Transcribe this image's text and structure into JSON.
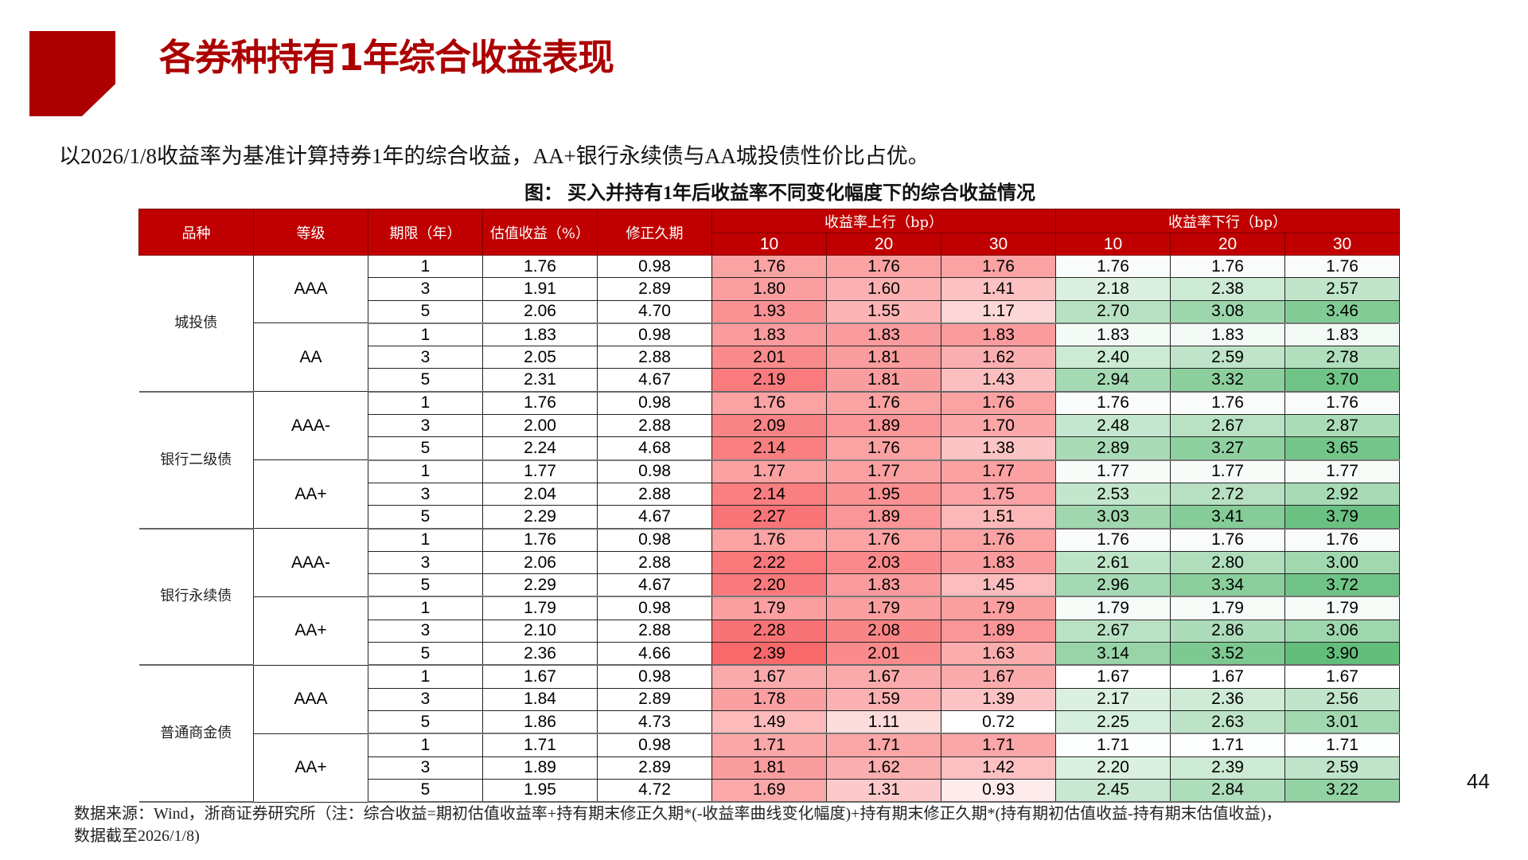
{
  "header": {
    "title": "各券种持有1年综合收益表现"
  },
  "summary": "以2026/1/8收益率为基准计算持券1年的综合收益，AA+银行永续债与AA城投债性价比占优。",
  "figure": {
    "title": "图：  买入并持有1年后收益率不同变化幅度下的综合收益情况"
  },
  "table": {
    "headers": {
      "category": "品种",
      "grade": "等级",
      "term": "期限（年）",
      "yield": "估值收益（%）",
      "duration": "修正久期",
      "up_group": "收益率上行（bp）",
      "down_group": "收益率下行（bp）",
      "bp_steps": [
        "10",
        "20",
        "30"
      ]
    },
    "color_scales": {
      "up": {
        "min": 0.72,
        "max": 2.39,
        "min_color": "#FFFFFF",
        "max_color": "#F8696B"
      },
      "down": {
        "min": 1.67,
        "max": 3.9,
        "min_color": "#FFFFFF",
        "max_color": "#63BE7B"
      }
    },
    "groups": [
      {
        "category": "城投债",
        "grades": [
          {
            "grade": "AAA",
            "rows": [
              {
                "term": "1",
                "yield": "1.76",
                "duration": "0.98",
                "up": [
                  "1.76",
                  "1.76",
                  "1.76"
                ],
                "down": [
                  "1.76",
                  "1.76",
                  "1.76"
                ]
              },
              {
                "term": "3",
                "yield": "1.91",
                "duration": "2.89",
                "up": [
                  "1.80",
                  "1.60",
                  "1.41"
                ],
                "down": [
                  "2.18",
                  "2.38",
                  "2.57"
                ]
              },
              {
                "term": "5",
                "yield": "2.06",
                "duration": "4.70",
                "up": [
                  "1.93",
                  "1.55",
                  "1.17"
                ],
                "down": [
                  "2.70",
                  "3.08",
                  "3.46"
                ]
              }
            ]
          },
          {
            "grade": "AA",
            "rows": [
              {
                "term": "1",
                "yield": "1.83",
                "duration": "0.98",
                "up": [
                  "1.83",
                  "1.83",
                  "1.83"
                ],
                "down": [
                  "1.83",
                  "1.83",
                  "1.83"
                ]
              },
              {
                "term": "3",
                "yield": "2.05",
                "duration": "2.88",
                "up": [
                  "2.01",
                  "1.81",
                  "1.62"
                ],
                "down": [
                  "2.40",
                  "2.59",
                  "2.78"
                ]
              },
              {
                "term": "5",
                "yield": "2.31",
                "duration": "4.67",
                "up": [
                  "2.19",
                  "1.81",
                  "1.43"
                ],
                "down": [
                  "2.94",
                  "3.32",
                  "3.70"
                ]
              }
            ]
          }
        ]
      },
      {
        "category": "银行二级债",
        "grades": [
          {
            "grade": "AAA-",
            "rows": [
              {
                "term": "1",
                "yield": "1.76",
                "duration": "0.98",
                "up": [
                  "1.76",
                  "1.76",
                  "1.76"
                ],
                "down": [
                  "1.76",
                  "1.76",
                  "1.76"
                ]
              },
              {
                "term": "3",
                "yield": "2.00",
                "duration": "2.88",
                "up": [
                  "2.09",
                  "1.89",
                  "1.70"
                ],
                "down": [
                  "2.48",
                  "2.67",
                  "2.87"
                ]
              },
              {
                "term": "5",
                "yield": "2.24",
                "duration": "4.68",
                "up": [
                  "2.14",
                  "1.76",
                  "1.38"
                ],
                "down": [
                  "2.89",
                  "3.27",
                  "3.65"
                ]
              }
            ]
          },
          {
            "grade": "AA+",
            "rows": [
              {
                "term": "1",
                "yield": "1.77",
                "duration": "0.98",
                "up": [
                  "1.77",
                  "1.77",
                  "1.77"
                ],
                "down": [
                  "1.77",
                  "1.77",
                  "1.77"
                ]
              },
              {
                "term": "3",
                "yield": "2.04",
                "duration": "2.88",
                "up": [
                  "2.14",
                  "1.95",
                  "1.75"
                ],
                "down": [
                  "2.53",
                  "2.72",
                  "2.92"
                ]
              },
              {
                "term": "5",
                "yield": "2.29",
                "duration": "4.67",
                "up": [
                  "2.27",
                  "1.89",
                  "1.51"
                ],
                "down": [
                  "3.03",
                  "3.41",
                  "3.79"
                ]
              }
            ]
          }
        ]
      },
      {
        "category": "银行永续债",
        "grades": [
          {
            "grade": "AAA-",
            "rows": [
              {
                "term": "1",
                "yield": "1.76",
                "duration": "0.98",
                "up": [
                  "1.76",
                  "1.76",
                  "1.76"
                ],
                "down": [
                  "1.76",
                  "1.76",
                  "1.76"
                ]
              },
              {
                "term": "3",
                "yield": "2.06",
                "duration": "2.88",
                "up": [
                  "2.22",
                  "2.03",
                  "1.83"
                ],
                "down": [
                  "2.61",
                  "2.80",
                  "3.00"
                ]
              },
              {
                "term": "5",
                "yield": "2.29",
                "duration": "4.67",
                "up": [
                  "2.20",
                  "1.83",
                  "1.45"
                ],
                "down": [
                  "2.96",
                  "3.34",
                  "3.72"
                ]
              }
            ]
          },
          {
            "grade": "AA+",
            "rows": [
              {
                "term": "1",
                "yield": "1.79",
                "duration": "0.98",
                "up": [
                  "1.79",
                  "1.79",
                  "1.79"
                ],
                "down": [
                  "1.79",
                  "1.79",
                  "1.79"
                ]
              },
              {
                "term": "3",
                "yield": "2.10",
                "duration": "2.88",
                "up": [
                  "2.28",
                  "2.08",
                  "1.89"
                ],
                "down": [
                  "2.67",
                  "2.86",
                  "3.06"
                ]
              },
              {
                "term": "5",
                "yield": "2.36",
                "duration": "4.66",
                "up": [
                  "2.39",
                  "2.01",
                  "1.63"
                ],
                "down": [
                  "3.14",
                  "3.52",
                  "3.90"
                ]
              }
            ]
          }
        ]
      },
      {
        "category": "普通商金债",
        "grades": [
          {
            "grade": "AAA",
            "rows": [
              {
                "term": "1",
                "yield": "1.67",
                "duration": "0.98",
                "up": [
                  "1.67",
                  "1.67",
                  "1.67"
                ],
                "down": [
                  "1.67",
                  "1.67",
                  "1.67"
                ]
              },
              {
                "term": "3",
                "yield": "1.84",
                "duration": "2.89",
                "up": [
                  "1.78",
                  "1.59",
                  "1.39"
                ],
                "down": [
                  "2.17",
                  "2.36",
                  "2.56"
                ]
              },
              {
                "term": "5",
                "yield": "1.86",
                "duration": "4.73",
                "up": [
                  "1.49",
                  "1.11",
                  "0.72"
                ],
                "down": [
                  "2.25",
                  "2.63",
                  "3.01"
                ]
              }
            ]
          },
          {
            "grade": "AA+",
            "rows": [
              {
                "term": "1",
                "yield": "1.71",
                "duration": "0.98",
                "up": [
                  "1.71",
                  "1.71",
                  "1.71"
                ],
                "down": [
                  "1.71",
                  "1.71",
                  "1.71"
                ]
              },
              {
                "term": "3",
                "yield": "1.89",
                "duration": "2.89",
                "up": [
                  "1.81",
                  "1.62",
                  "1.42"
                ],
                "down": [
                  "2.20",
                  "2.39",
                  "2.59"
                ]
              },
              {
                "term": "5",
                "yield": "1.95",
                "duration": "4.72",
                "up": [
                  "1.69",
                  "1.31",
                  "0.93"
                ],
                "down": [
                  "2.45",
                  "2.84",
                  "3.22"
                ]
              }
            ]
          }
        ]
      }
    ]
  },
  "page_number": "44",
  "footnote": {
    "line1": "数据来源：Wind，浙商证券研究所（注：综合收益=期初估值收益率+持有期末修正久期*(-收益率曲线变化幅度)+持有期末修正久期*(持有期初估值收益-持有期末估值收益)，",
    "line2": "数据截至2026/1/8)"
  },
  "chart_data": {
    "type": "table",
    "title": "买入并持有1年后收益率不同变化幅度下的综合收益情况",
    "columns": [
      "品种",
      "等级",
      "期限（年）",
      "估值收益（%）",
      "修正久期",
      "上行10bp",
      "上行20bp",
      "上行30bp",
      "下行10bp",
      "下行20bp",
      "下行30bp"
    ],
    "rows": [
      [
        "城投债",
        "AAA",
        1,
        1.76,
        0.98,
        1.76,
        1.76,
        1.76,
        1.76,
        1.76,
        1.76
      ],
      [
        "城投债",
        "AAA",
        3,
        1.91,
        2.89,
        1.8,
        1.6,
        1.41,
        2.18,
        2.38,
        2.57
      ],
      [
        "城投债",
        "AAA",
        5,
        2.06,
        4.7,
        1.93,
        1.55,
        1.17,
        2.7,
        3.08,
        3.46
      ],
      [
        "城投债",
        "AA",
        1,
        1.83,
        0.98,
        1.83,
        1.83,
        1.83,
        1.83,
        1.83,
        1.83
      ],
      [
        "城投债",
        "AA",
        3,
        2.05,
        2.88,
        2.01,
        1.81,
        1.62,
        2.4,
        2.59,
        2.78
      ],
      [
        "城投债",
        "AA",
        5,
        2.31,
        4.67,
        2.19,
        1.81,
        1.43,
        2.94,
        3.32,
        3.7
      ],
      [
        "银行二级债",
        "AAA-",
        1,
        1.76,
        0.98,
        1.76,
        1.76,
        1.76,
        1.76,
        1.76,
        1.76
      ],
      [
        "银行二级债",
        "AAA-",
        3,
        2.0,
        2.88,
        2.09,
        1.89,
        1.7,
        2.48,
        2.67,
        2.87
      ],
      [
        "银行二级债",
        "AAA-",
        5,
        2.24,
        4.68,
        2.14,
        1.76,
        1.38,
        2.89,
        3.27,
        3.65
      ],
      [
        "银行二级债",
        "AA+",
        1,
        1.77,
        0.98,
        1.77,
        1.77,
        1.77,
        1.77,
        1.77,
        1.77
      ],
      [
        "银行二级债",
        "AA+",
        3,
        2.04,
        2.88,
        2.14,
        1.95,
        1.75,
        2.53,
        2.72,
        2.92
      ],
      [
        "银行二级债",
        "AA+",
        5,
        2.29,
        4.67,
        2.27,
        1.89,
        1.51,
        3.03,
        3.41,
        3.79
      ],
      [
        "银行永续债",
        "AAA-",
        1,
        1.76,
        0.98,
        1.76,
        1.76,
        1.76,
        1.76,
        1.76,
        1.76
      ],
      [
        "银行永续债",
        "AAA-",
        3,
        2.06,
        2.88,
        2.22,
        2.03,
        1.83,
        2.61,
        2.8,
        3.0
      ],
      [
        "银行永续债",
        "AAA-",
        5,
        2.29,
        4.67,
        2.2,
        1.83,
        1.45,
        2.96,
        3.34,
        3.72
      ],
      [
        "银行永续债",
        "AA+",
        1,
        1.79,
        0.98,
        1.79,
        1.79,
        1.79,
        1.79,
        1.79,
        1.79
      ],
      [
        "银行永续债",
        "AA+",
        3,
        2.1,
        2.88,
        2.28,
        2.08,
        1.89,
        2.67,
        2.86,
        3.06
      ],
      [
        "银行永续债",
        "AA+",
        5,
        2.36,
        4.66,
        2.39,
        2.01,
        1.63,
        3.14,
        3.52,
        3.9
      ],
      [
        "普通商金债",
        "AAA",
        1,
        1.67,
        0.98,
        1.67,
        1.67,
        1.67,
        1.67,
        1.67,
        1.67
      ],
      [
        "普通商金债",
        "AAA",
        3,
        1.84,
        2.89,
        1.78,
        1.59,
        1.39,
        2.17,
        2.36,
        2.56
      ],
      [
        "普通商金债",
        "AAA",
        5,
        1.86,
        4.73,
        1.49,
        1.11,
        0.72,
        2.25,
        2.63,
        3.01
      ],
      [
        "普通商金债",
        "AA+",
        1,
        1.71,
        0.98,
        1.71,
        1.71,
        1.71,
        1.71,
        1.71,
        1.71
      ],
      [
        "普通商金债",
        "AA+",
        3,
        1.89,
        2.89,
        1.81,
        1.62,
        1.42,
        2.2,
        2.39,
        2.59
      ],
      [
        "普通商金债",
        "AA+",
        5,
        1.95,
        4.72,
        1.69,
        1.31,
        0.93,
        2.45,
        2.84,
        3.22
      ]
    ]
  }
}
